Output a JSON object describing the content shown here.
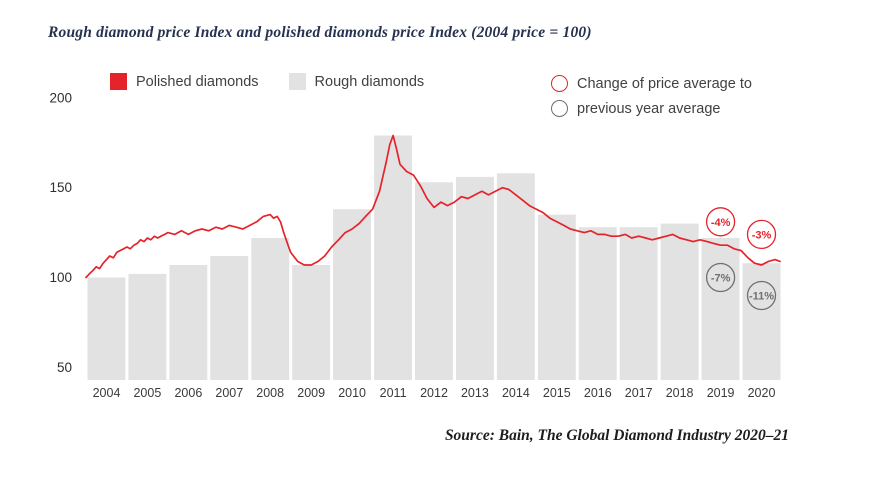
{
  "title": "Rough diamond price Index and polished diamonds price Index (2004 price = 100)",
  "legend": {
    "polished_label": "Polished diamonds",
    "rough_label": "Rough diamonds",
    "change_line1": "Change of price average to",
    "change_line2": "previous year average"
  },
  "source": "Source: Bain, The Global Diamond Industry 2020–21",
  "colors": {
    "red": "#e5232b",
    "bar": "#e2e2e2",
    "gray_circle": "#6f6f6f",
    "title_navy": "#26324f"
  },
  "chart_data": {
    "type": "bar",
    "title": "Rough diamond price Index and polished diamonds price Index (2004 price = 100)",
    "categories": [
      2004,
      2005,
      2006,
      2007,
      2008,
      2009,
      2010,
      2011,
      2012,
      2013,
      2014,
      2015,
      2016,
      2017,
      2018,
      2019,
      2020
    ],
    "yticks": [
      200,
      150,
      100,
      50
    ],
    "ylim": [
      43,
      201
    ],
    "grid": false,
    "legend_position": "top",
    "series": [
      {
        "name": "Rough diamonds",
        "type": "bar",
        "values": [
          100,
          102,
          107,
          112,
          122,
          107,
          138,
          179,
          153,
          156,
          158,
          135,
          128,
          128,
          130,
          122,
          108
        ]
      },
      {
        "name": "Polished diamonds",
        "type": "line",
        "points": [
          [
            2004.0,
            100
          ],
          [
            2004.08,
            102
          ],
          [
            2004.17,
            104
          ],
          [
            2004.25,
            106
          ],
          [
            2004.33,
            105
          ],
          [
            2004.42,
            108
          ],
          [
            2004.5,
            110
          ],
          [
            2004.58,
            112
          ],
          [
            2004.67,
            111
          ],
          [
            2004.75,
            114
          ],
          [
            2004.83,
            115
          ],
          [
            2004.92,
            116
          ],
          [
            2005.0,
            117
          ],
          [
            2005.08,
            116
          ],
          [
            2005.17,
            118
          ],
          [
            2005.25,
            119
          ],
          [
            2005.33,
            121
          ],
          [
            2005.42,
            120
          ],
          [
            2005.5,
            122
          ],
          [
            2005.58,
            121
          ],
          [
            2005.67,
            123
          ],
          [
            2005.75,
            122
          ],
          [
            2005.83,
            123
          ],
          [
            2005.92,
            124
          ],
          [
            2006.0,
            125
          ],
          [
            2006.17,
            124
          ],
          [
            2006.33,
            126
          ],
          [
            2006.5,
            124
          ],
          [
            2006.67,
            126
          ],
          [
            2006.83,
            127
          ],
          [
            2007.0,
            126
          ],
          [
            2007.17,
            128
          ],
          [
            2007.33,
            127
          ],
          [
            2007.5,
            129
          ],
          [
            2007.67,
            128
          ],
          [
            2007.83,
            127
          ],
          [
            2008.0,
            129
          ],
          [
            2008.17,
            131
          ],
          [
            2008.33,
            134
          ],
          [
            2008.5,
            135
          ],
          [
            2008.58,
            133
          ],
          [
            2008.67,
            134
          ],
          [
            2008.75,
            131
          ],
          [
            2008.83,
            125
          ],
          [
            2008.92,
            119
          ],
          [
            2009.0,
            114
          ],
          [
            2009.17,
            109
          ],
          [
            2009.33,
            107
          ],
          [
            2009.5,
            107
          ],
          [
            2009.67,
            109
          ],
          [
            2009.83,
            112
          ],
          [
            2010.0,
            117
          ],
          [
            2010.17,
            121
          ],
          [
            2010.33,
            125
          ],
          [
            2010.5,
            127
          ],
          [
            2010.67,
            130
          ],
          [
            2010.83,
            134
          ],
          [
            2011.0,
            138
          ],
          [
            2011.17,
            148
          ],
          [
            2011.33,
            164
          ],
          [
            2011.42,
            174
          ],
          [
            2011.5,
            179
          ],
          [
            2011.58,
            172
          ],
          [
            2011.67,
            163
          ],
          [
            2011.83,
            159
          ],
          [
            2012.0,
            157
          ],
          [
            2012.17,
            151
          ],
          [
            2012.33,
            144
          ],
          [
            2012.5,
            139
          ],
          [
            2012.67,
            142
          ],
          [
            2012.83,
            140
          ],
          [
            2013.0,
            142
          ],
          [
            2013.17,
            145
          ],
          [
            2013.33,
            144
          ],
          [
            2013.5,
            146
          ],
          [
            2013.67,
            148
          ],
          [
            2013.83,
            146
          ],
          [
            2014.0,
            148
          ],
          [
            2014.17,
            150
          ],
          [
            2014.33,
            149
          ],
          [
            2014.5,
            146
          ],
          [
            2014.67,
            143
          ],
          [
            2014.83,
            140
          ],
          [
            2015.0,
            138
          ],
          [
            2015.17,
            136
          ],
          [
            2015.33,
            133
          ],
          [
            2015.5,
            131
          ],
          [
            2015.67,
            129
          ],
          [
            2015.83,
            127
          ],
          [
            2016.0,
            126
          ],
          [
            2016.17,
            125
          ],
          [
            2016.33,
            126
          ],
          [
            2016.5,
            124
          ],
          [
            2016.67,
            124
          ],
          [
            2016.83,
            123
          ],
          [
            2017.0,
            123
          ],
          [
            2017.17,
            124
          ],
          [
            2017.33,
            122
          ],
          [
            2017.5,
            123
          ],
          [
            2017.67,
            122
          ],
          [
            2017.83,
            121
          ],
          [
            2018.0,
            122
          ],
          [
            2018.17,
            123
          ],
          [
            2018.33,
            124
          ],
          [
            2018.5,
            122
          ],
          [
            2018.67,
            121
          ],
          [
            2018.83,
            120
          ],
          [
            2019.0,
            121
          ],
          [
            2019.17,
            120
          ],
          [
            2019.33,
            119
          ],
          [
            2019.5,
            118
          ],
          [
            2019.67,
            118
          ],
          [
            2019.83,
            116
          ],
          [
            2020.0,
            115
          ],
          [
            2020.17,
            111
          ],
          [
            2020.33,
            108
          ],
          [
            2020.5,
            107
          ],
          [
            2020.67,
            109
          ],
          [
            2020.83,
            110
          ],
          [
            2020.95,
            109
          ]
        ]
      }
    ],
    "annotations": [
      {
        "label": "-4%",
        "year": 2019,
        "value": 131,
        "color": "red"
      },
      {
        "label": "-3%",
        "year": 2020,
        "value": 124,
        "color": "red"
      },
      {
        "label": "-7%",
        "year": 2019,
        "value": 100,
        "color": "gray"
      },
      {
        "label": "-11%",
        "year": 2020,
        "value": 90,
        "color": "gray"
      }
    ]
  }
}
